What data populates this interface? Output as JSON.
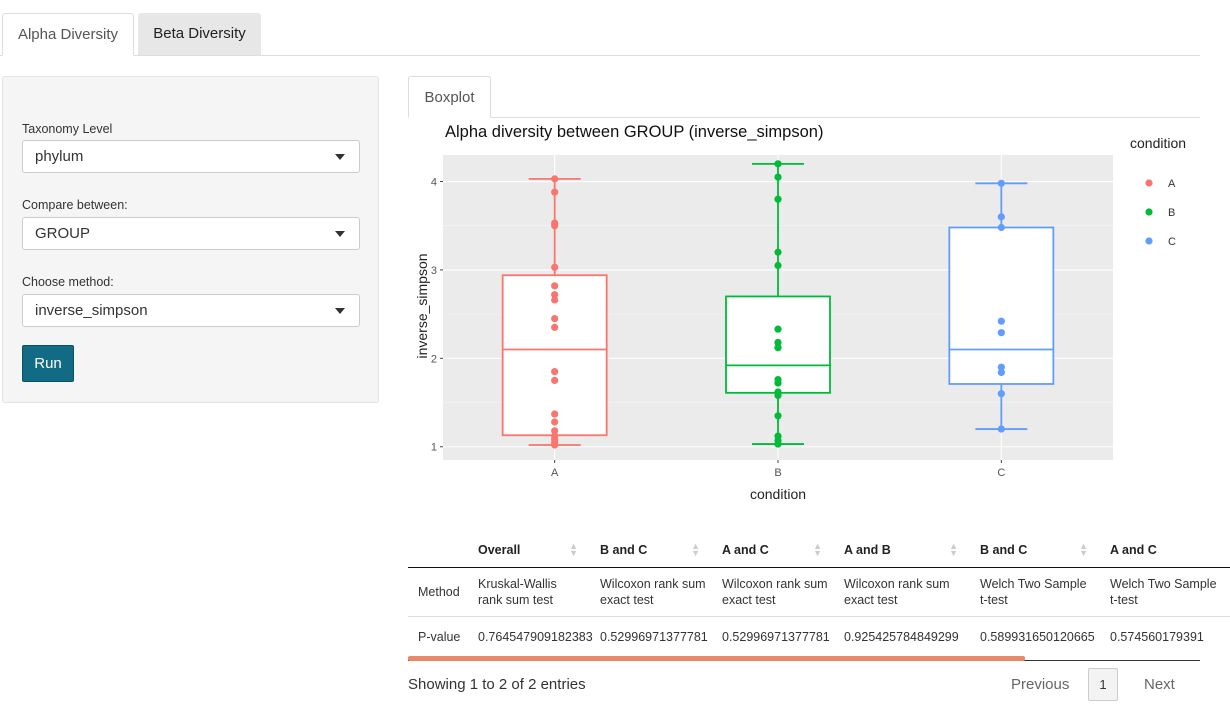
{
  "top_tabs": [
    {
      "label": "Alpha Diversity",
      "active": true
    },
    {
      "label": "Beta Diversity",
      "active": false
    }
  ],
  "sidebar": {
    "taxonomy_label": "Taxonomy Level",
    "taxonomy_value": "phylum",
    "compare_label": "Compare between:",
    "compare_value": "GROUP",
    "method_label": "Choose method:",
    "method_value": "inverse_simpson",
    "run_label": "Run"
  },
  "sub_tabs": [
    {
      "label": "Boxplot",
      "active": true
    }
  ],
  "chart_data": {
    "type": "boxplot",
    "title": "Alpha diversity between GROUP (inverse_simpson)",
    "xlabel": "condition",
    "ylabel": "inverse_simpson",
    "categories": [
      "A",
      "B",
      "C"
    ],
    "ylim": [
      0.85,
      4.3
    ],
    "yticks": [
      1,
      2,
      3,
      4
    ],
    "legend": {
      "title": "condition",
      "entries": [
        "A",
        "B",
        "C"
      ],
      "position": "right"
    },
    "series": [
      {
        "name": "A",
        "color": "#f8766d",
        "min": 1.02,
        "q1": 1.13,
        "median": 2.1,
        "q3": 2.94,
        "max": 4.03,
        "points": [
          4.03,
          3.88,
          3.53,
          3.5,
          3.03,
          2.82,
          2.72,
          2.66,
          2.45,
          2.35,
          1.85,
          1.75,
          1.37,
          1.28,
          1.18,
          1.12,
          1.08,
          1.05,
          1.02
        ]
      },
      {
        "name": "B",
        "color": "#00ba38",
        "min": 1.03,
        "q1": 1.61,
        "median": 1.92,
        "q3": 2.7,
        "max": 4.2,
        "points": [
          4.2,
          4.05,
          3.8,
          3.2,
          3.05,
          2.33,
          2.18,
          2.12,
          1.76,
          1.72,
          1.62,
          1.58,
          1.35,
          1.12,
          1.07,
          1.03
        ]
      },
      {
        "name": "C",
        "color": "#619cff",
        "min": 1.2,
        "q1": 1.71,
        "median": 2.1,
        "q3": 3.48,
        "max": 3.98,
        "points": [
          3.98,
          3.6,
          3.48,
          2.42,
          2.29,
          1.9,
          1.84,
          1.6,
          1.2
        ]
      }
    ]
  },
  "table": {
    "columns": [
      "",
      "Overall",
      "B and C",
      "A and C",
      "A and B",
      "B and C",
      "A and C"
    ],
    "rows": [
      [
        "Method",
        "Kruskal-Wallis rank sum test",
        "Wilcoxon rank sum exact test",
        "Wilcoxon rank sum exact test",
        "Wilcoxon rank sum exact test",
        "Welch Two Sample t-test",
        "Welch Two Sample t-test"
      ],
      [
        "P-value",
        "0.764547909182383",
        "0.52996971377781",
        "0.52996971377781",
        "0.925425784849299",
        "0.589931650120665",
        "0.574560179391"
      ]
    ],
    "info": "Showing 1 to 2 of 2 entries",
    "pager": {
      "prev": "Previous",
      "page": "1",
      "next": "Next"
    }
  }
}
